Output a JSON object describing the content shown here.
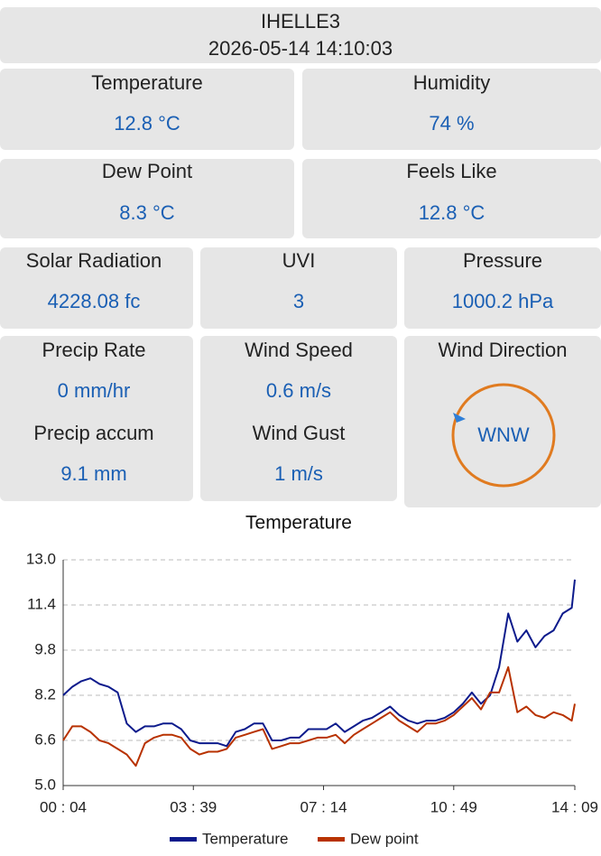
{
  "header": {
    "station": "IHELLE3",
    "timestamp": "2026-05-14 14:10:03"
  },
  "tiles": [
    {
      "label": "Temperature",
      "value": "12.8 °C"
    },
    {
      "label": "Humidity",
      "value": "74 %"
    },
    {
      "label": "Dew Point",
      "value": "8.3 °C"
    },
    {
      "label": "Feels Like",
      "value": "12.8 °C"
    },
    {
      "label": "Solar Radiation",
      "value": "4228.08 fc"
    },
    {
      "label": "UVI",
      "value": "3"
    },
    {
      "label": "Pressure",
      "value": "1000.2 hPa"
    },
    {
      "label": "Precip Rate",
      "value": "0 mm/hr"
    },
    {
      "label": "Precip accum",
      "value": "9.1 mm"
    },
    {
      "label": "Wind Speed",
      "value": "0.6 m/s"
    },
    {
      "label": "Wind Gust",
      "value": "1 m/s"
    },
    {
      "label": "Wind Direction",
      "value": "WNW"
    }
  ],
  "chart_data": {
    "type": "line",
    "title": "Temperature",
    "x": [
      "00:04",
      "00:19",
      "00:34",
      "00:49",
      "01:04",
      "01:19",
      "01:34",
      "01:49",
      "02:04",
      "02:19",
      "02:34",
      "02:49",
      "03:04",
      "03:19",
      "03:34",
      "03:49",
      "04:04",
      "04:19",
      "04:34",
      "04:49",
      "05:04",
      "05:19",
      "05:34",
      "05:49",
      "06:04",
      "06:19",
      "06:34",
      "06:49",
      "07:04",
      "07:19",
      "07:34",
      "07:49",
      "08:04",
      "08:19",
      "08:34",
      "08:49",
      "09:04",
      "09:19",
      "09:34",
      "09:49",
      "10:04",
      "10:19",
      "10:34",
      "10:49",
      "11:04",
      "11:19",
      "11:34",
      "11:49",
      "12:04",
      "12:19",
      "12:34",
      "12:49",
      "13:04",
      "13:19",
      "13:34",
      "13:49",
      "14:04",
      "14:09"
    ],
    "series": [
      {
        "name": "Temperature",
        "color": "#0d1b8c",
        "values": [
          8.2,
          8.5,
          8.7,
          8.8,
          8.6,
          8.5,
          8.3,
          7.2,
          6.9,
          7.1,
          7.1,
          7.2,
          7.2,
          7.0,
          6.6,
          6.5,
          6.5,
          6.5,
          6.4,
          6.9,
          7.0,
          7.2,
          7.2,
          6.6,
          6.6,
          6.7,
          6.7,
          7.0,
          7.0,
          7.0,
          7.2,
          6.9,
          7.1,
          7.3,
          7.4,
          7.6,
          7.8,
          7.5,
          7.3,
          7.2,
          7.3,
          7.3,
          7.4,
          7.6,
          7.9,
          8.3,
          7.9,
          8.2,
          9.2,
          11.1,
          10.1,
          10.5,
          9.9,
          10.3,
          10.5,
          11.1,
          11.3,
          12.3
        ]
      },
      {
        "name": "Dew point",
        "color": "#b83200",
        "values": [
          6.6,
          7.1,
          7.1,
          6.9,
          6.6,
          6.5,
          6.3,
          6.1,
          5.7,
          6.5,
          6.7,
          6.8,
          6.8,
          6.7,
          6.3,
          6.1,
          6.2,
          6.2,
          6.3,
          6.7,
          6.8,
          6.9,
          7.0,
          6.3,
          6.4,
          6.5,
          6.5,
          6.6,
          6.7,
          6.7,
          6.8,
          6.5,
          6.8,
          7.0,
          7.2,
          7.4,
          7.6,
          7.3,
          7.1,
          6.9,
          7.2,
          7.2,
          7.3,
          7.5,
          7.8,
          8.1,
          7.7,
          8.3,
          8.3,
          9.2,
          7.6,
          7.8,
          7.5,
          7.4,
          7.6,
          7.5,
          7.3,
          7.9
        ]
      }
    ],
    "xlim": [
      "00:04",
      "14:09"
    ],
    "xticks": [
      {
        "value": "00:04",
        "label": "00 : 04"
      },
      {
        "value": "03:39",
        "label": "03 : 39"
      },
      {
        "value": "07:14",
        "label": "07 : 14"
      },
      {
        "value": "10:49",
        "label": "10 : 49"
      },
      {
        "value": "14:09",
        "label": "14 : 09"
      }
    ],
    "ylim": [
      5,
      13
    ],
    "yticks": [
      {
        "value": 5,
        "label": "5.0"
      },
      6.6,
      8.2,
      9.8,
      11.4,
      {
        "value": 13,
        "label": "13.0"
      }
    ],
    "grid": true,
    "legend": "bottom"
  }
}
